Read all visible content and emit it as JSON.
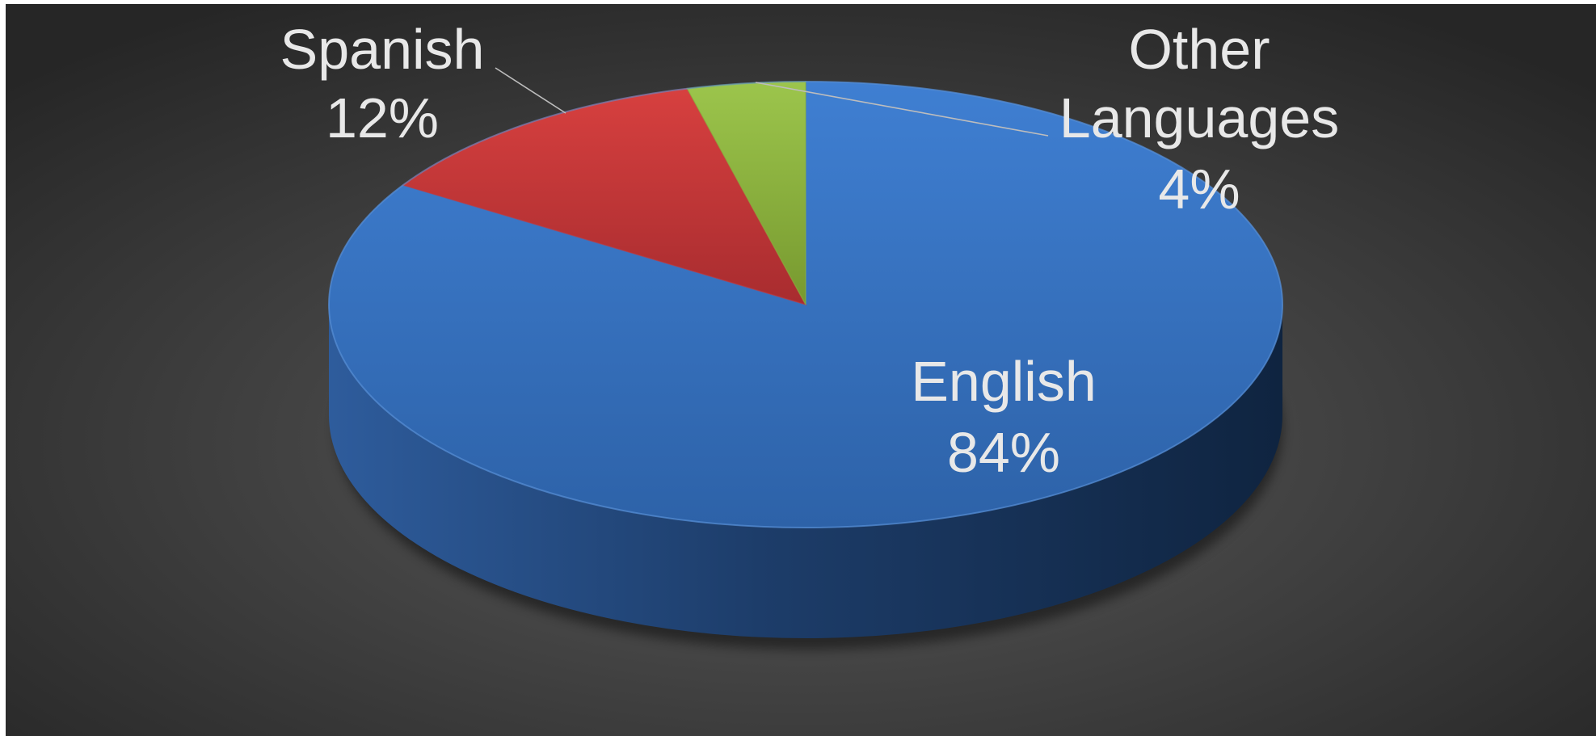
{
  "chart_data": {
    "type": "pie",
    "title": "",
    "slices": [
      {
        "name": "English",
        "value": 84,
        "label_name": "English",
        "label_value": "84%",
        "color": "#3a76c4"
      },
      {
        "name": "Spanish",
        "value": 12,
        "label_name": "Spanish",
        "label_value": "12%",
        "color": "#c8363a"
      },
      {
        "name": "Other Languages",
        "value": 4,
        "label_name": "Other Languages",
        "label_value": "4%",
        "color": "#8ab33f"
      }
    ],
    "style": "3d",
    "legend": "none",
    "background": "#3f3f3f",
    "label_color": "#e8e8e8"
  }
}
